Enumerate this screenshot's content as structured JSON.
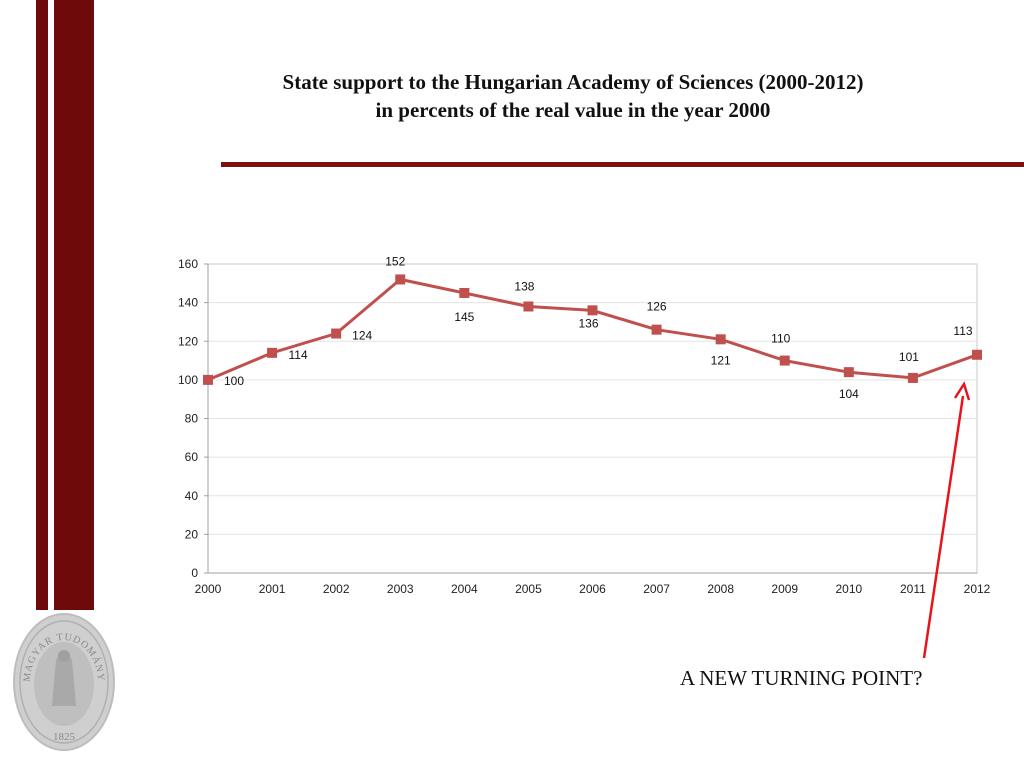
{
  "slide": {
    "title_line1": "State support to the Hungarian Academy of Sciences (2000-2012)",
    "title_line2": "in percents of the real value in the year 2000",
    "annotation": "A NEW TURNING POINT?",
    "seal_text": "MAGYAR TUDOMÁNYOS AKADÉMIA",
    "seal_year": "1825"
  },
  "colors": {
    "bar": "#6e0a0a",
    "series": "#c0504d",
    "arrow": "#e8141b"
  },
  "chart_data": {
    "type": "line",
    "title": "",
    "xlabel": "",
    "ylabel": "",
    "categories": [
      "2000",
      "2001",
      "2002",
      "2003",
      "2004",
      "2005",
      "2006",
      "2007",
      "2008",
      "2009",
      "2010",
      "2011",
      "2012"
    ],
    "series": [
      {
        "values": [
          100,
          114,
          124,
          152,
          145,
          138,
          136,
          126,
          121,
          110,
          104,
          101,
          113
        ]
      }
    ],
    "ylim": [
      0,
      160
    ],
    "yticks": [
      0,
      20,
      40,
      60,
      80,
      100,
      120,
      140,
      160
    ],
    "grid": true,
    "legend": "none",
    "data_labels": [
      "100",
      "114",
      "124",
      "152",
      "145",
      "138",
      "136",
      "126",
      "121",
      "110",
      "104",
      "101",
      "113"
    ]
  }
}
